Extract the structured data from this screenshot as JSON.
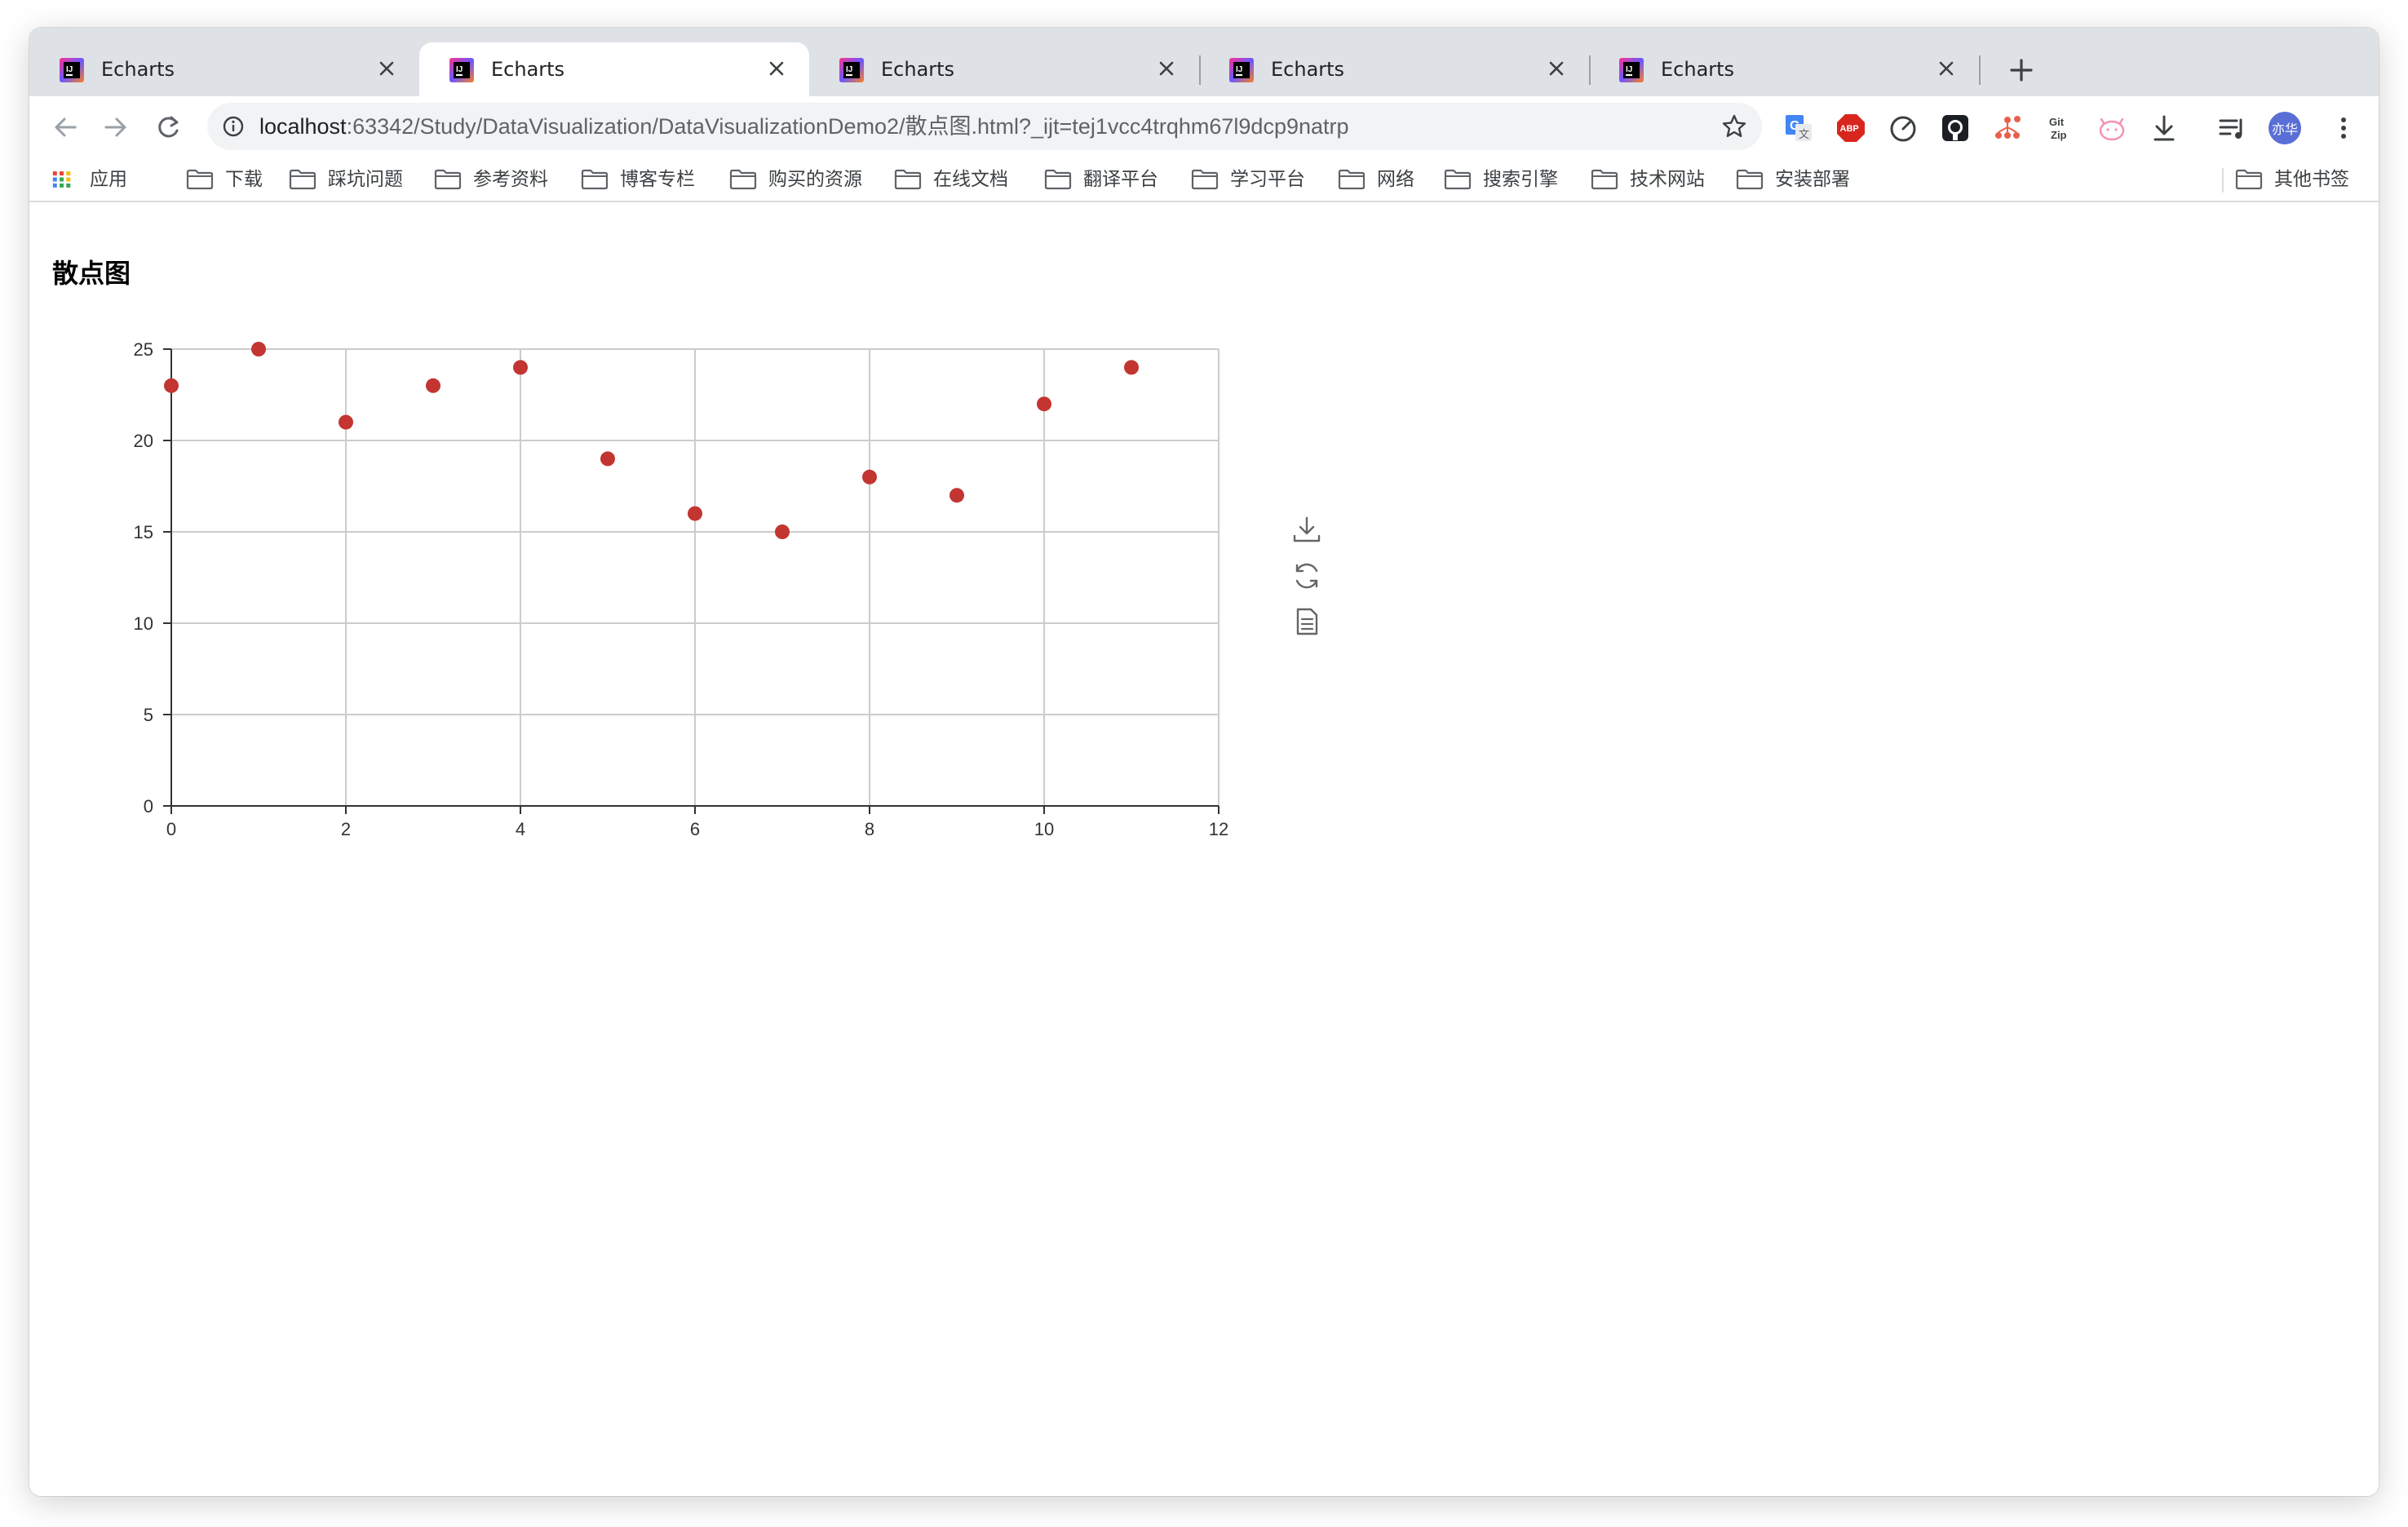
{
  "tabs": [
    {
      "title": "Echarts",
      "active": false
    },
    {
      "title": "Echarts",
      "active": true
    },
    {
      "title": "Echarts",
      "active": false
    },
    {
      "title": "Echarts",
      "active": false
    },
    {
      "title": "Echarts",
      "active": false
    }
  ],
  "address_bar": {
    "host": "localhost",
    "path": ":63342/Study/DataVisualization/DataVisualizationDemo2/散点图.html?_ijt=tej1vcc4trqhm67l9dcp9natrp"
  },
  "bookmarks": {
    "apps_label": "应用",
    "items": [
      "下载",
      "踩坑问题",
      "参考资料",
      "博客专栏",
      "购买的资源",
      "在线文档",
      "翻译平台",
      "学习平台",
      "网络",
      "搜索引擎",
      "技术网站",
      "安装部署"
    ],
    "other_label": "其他书签"
  },
  "profile": {
    "name": "亦华",
    "color": "#5a6fd6"
  },
  "extensions": [
    "google-translate-icon",
    "adblock-plus-icon",
    "speedometer-icon",
    "github-icon",
    "network-icon",
    "gitzip-icon",
    "cat-icon",
    "download-icon",
    "reading-list-icon"
  ],
  "page": {
    "title": "散点图"
  },
  "chart_toolbox": [
    "save-image-icon",
    "restore-icon",
    "data-view-icon"
  ],
  "colors": {
    "point": "#c23531",
    "grid": "#cccccc",
    "axis": "#333333"
  },
  "chart_data": {
    "type": "scatter",
    "title": "",
    "xlabel": "",
    "ylabel": "",
    "xlim": [
      0,
      12
    ],
    "ylim": [
      0,
      25
    ],
    "xticks": [
      0,
      2,
      4,
      6,
      8,
      10,
      12
    ],
    "yticks": [
      0,
      5,
      10,
      15,
      20,
      25
    ],
    "grid": true,
    "series": [
      {
        "points": [
          [
            0,
            23
          ],
          [
            1,
            25
          ],
          [
            2,
            21
          ],
          [
            3,
            23
          ],
          [
            4,
            24
          ],
          [
            5,
            19
          ],
          [
            6,
            16
          ],
          [
            7,
            15
          ],
          [
            8,
            18
          ],
          [
            9,
            17
          ],
          [
            10,
            22
          ],
          [
            11,
            24
          ]
        ]
      }
    ]
  }
}
